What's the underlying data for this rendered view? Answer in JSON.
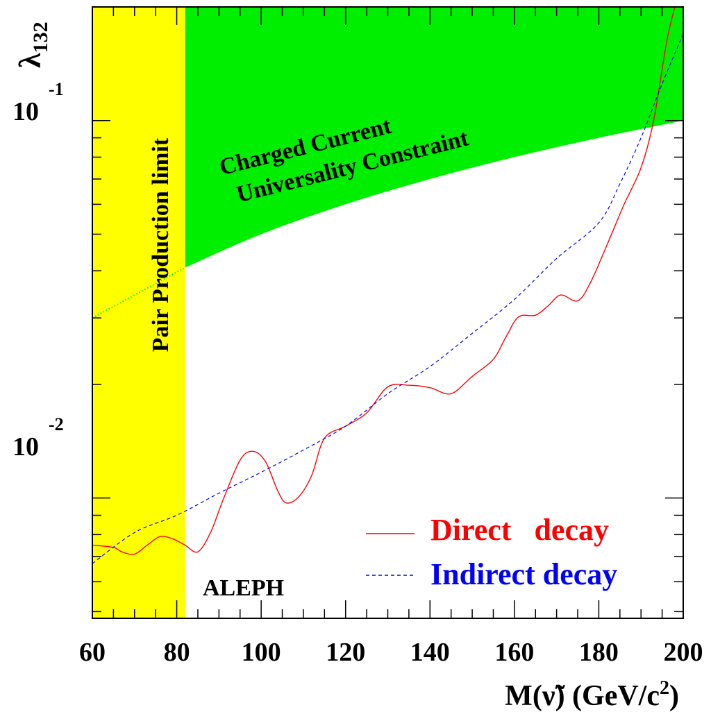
{
  "chart_data": {
    "type": "line",
    "xlabel": "M(ṽ) (GeV/c²)",
    "ylabel": "λ132",
    "x_tick_labels": [
      "60",
      "80",
      "100",
      "120",
      "140",
      "160",
      "180",
      "200"
    ],
    "y_tick_labels": [
      {
        "base": "10",
        "exp": "-1",
        "value": 0.1
      },
      {
        "base": "10",
        "exp": "-2",
        "value": 0.01
      }
    ],
    "xlim": [
      60,
      200
    ],
    "ylim": [
      0.0048,
      0.2
    ],
    "y_scale": "log",
    "grid": false,
    "legend_position": "bottom-right",
    "annotations": {
      "experiment": "ALEPH",
      "pair_production": "Pair Production limit",
      "cc_line1": "Charged Current",
      "cc_line2": "Universality Constraint"
    },
    "regions": {
      "pair_production": {
        "x_from": 60,
        "x_to": 82,
        "color": "#ffff00"
      },
      "charged_current": {
        "color": "#00ee00",
        "x": [
          82,
          100,
          120,
          140,
          160,
          180,
          200
        ],
        "y_lower": [
          0.0408,
          0.05,
          0.06,
          0.07,
          0.08,
          0.09,
          0.1
        ],
        "dotted_x": [
          60,
          82
        ],
        "dotted_y": [
          0.03,
          0.0408
        ]
      }
    },
    "series": [
      {
        "name": "Direct   decay",
        "color": "#ff0000",
        "style": "solid",
        "x": [
          60,
          65,
          67,
          70,
          73,
          76,
          79,
          82,
          85,
          88,
          91,
          95,
          98,
          101,
          104,
          106,
          109,
          112,
          115,
          120,
          125,
          130,
          135,
          140,
          145,
          150,
          155,
          158,
          161,
          165,
          168,
          171,
          175,
          178,
          182,
          186,
          190,
          193,
          196,
          198
        ],
        "y": [
          0.0075,
          0.0074,
          0.0072,
          0.0071,
          0.0075,
          0.0079,
          0.0078,
          0.0075,
          0.0072,
          0.0081,
          0.0099,
          0.0126,
          0.0133,
          0.0125,
          0.0104,
          0.0097,
          0.0101,
          0.0115,
          0.0144,
          0.0155,
          0.0168,
          0.0197,
          0.0199,
          0.0196,
          0.0189,
          0.021,
          0.0233,
          0.0267,
          0.0302,
          0.0305,
          0.0323,
          0.0345,
          0.0333,
          0.0372,
          0.047,
          0.06,
          0.075,
          0.1,
          0.16,
          0.2
        ]
      },
      {
        "name": "Indirect decay",
        "color": "#0000ff",
        "style": "dashed",
        "x": [
          60,
          70,
          80,
          90,
          100,
          110,
          120,
          130,
          140,
          150,
          160,
          170,
          180,
          185,
          190,
          195,
          200
        ],
        "y": [
          0.0067,
          0.0081,
          0.009,
          0.0103,
          0.0117,
          0.0134,
          0.0155,
          0.0189,
          0.0223,
          0.0273,
          0.0336,
          0.0431,
          0.0536,
          0.068,
          0.09,
          0.125,
          0.17
        ]
      }
    ]
  }
}
